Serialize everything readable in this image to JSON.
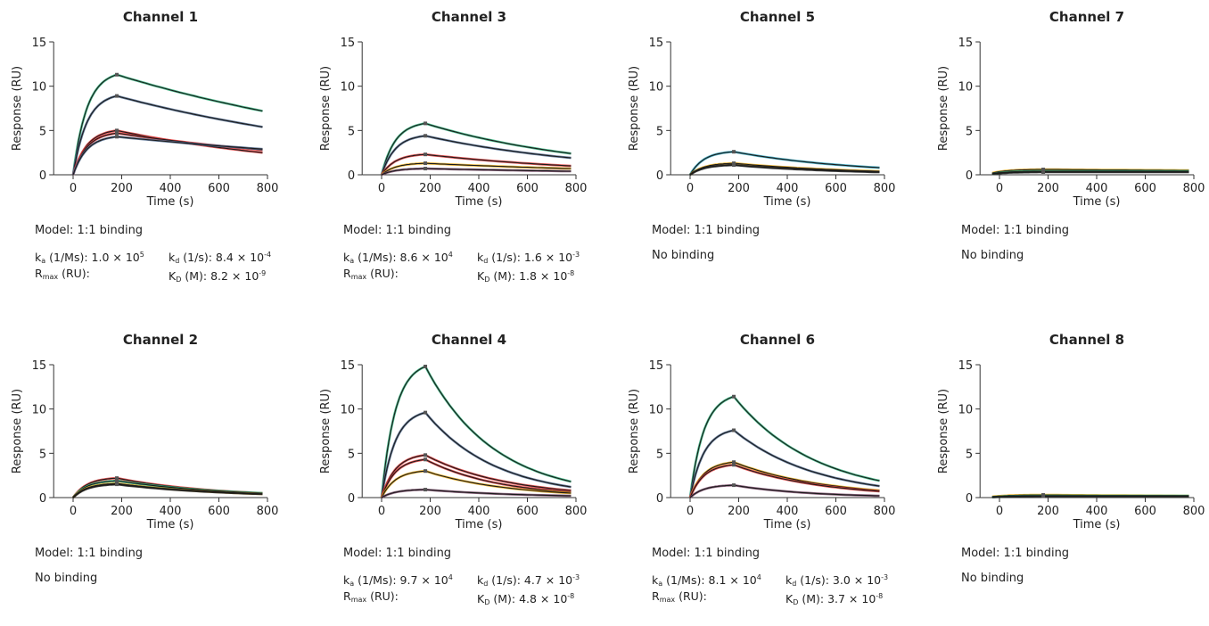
{
  "chart_data": [
    {
      "type": "line",
      "title": "Channel 1",
      "xlabel": "Time (s)",
      "ylabel": "Response (RU)",
      "xlim": [
        -80,
        800
      ],
      "ylim": [
        0,
        15
      ],
      "xticks": [
        "0",
        "200",
        "400",
        "600",
        "800"
      ],
      "yticks": [
        "0",
        "5",
        "10",
        "15"
      ],
      "series": [
        {
          "color": "#2db27a",
          "values": [
            [
              0,
              0
            ],
            [
              180,
              11.3
            ],
            [
              780,
              7.2
            ]
          ]
        },
        {
          "color": "#4f6a8e",
          "values": [
            [
              0,
              0
            ],
            [
              180,
              8.9
            ],
            [
              780,
              5.4
            ]
          ]
        },
        {
          "color": "#e03a3a",
          "values": [
            [
              0,
              0
            ],
            [
              180,
              5.0
            ],
            [
              780,
              2.5
            ]
          ]
        },
        {
          "color": "#e03a3a",
          "values": [
            [
              0,
              0
            ],
            [
              180,
              4.7
            ],
            [
              780,
              2.8
            ]
          ]
        },
        {
          "color": "#4f6a8e",
          "values": [
            [
              0,
              0
            ],
            [
              180,
              4.3
            ],
            [
              780,
              2.9
            ]
          ]
        }
      ],
      "model": "Model: 1:1 binding",
      "ka_label": "k",
      "ka_sub": "a",
      "ka_unit": " (1/Ms): ",
      "ka_value": "1.0 × 10",
      "ka_exp": "5",
      "kd_label": "k",
      "kd_sub": "d",
      "kd_unit": " (1/s): ",
      "kd_value": "8.4 × 10",
      "kd_exp": "-4",
      "rmax_label": "R",
      "rmax_sub": "max",
      "rmax_unit": " (RU):",
      "KD_label": "K",
      "KD_sub": "D",
      "KD_unit": " (M): ",
      "KD_value": "8.2 × 10",
      "KD_exp": "-9"
    },
    {
      "type": "line",
      "title": "Channel 3",
      "xlabel": "Time (s)",
      "ylabel": "Response (RU)",
      "xlim": [
        -80,
        800
      ],
      "ylim": [
        0,
        15
      ],
      "xticks": [
        "0",
        "200",
        "400",
        "600",
        "800"
      ],
      "yticks": [
        "0",
        "5",
        "10",
        "15"
      ],
      "series": [
        {
          "color": "#2db27a",
          "values": [
            [
              0,
              0
            ],
            [
              180,
              5.8
            ],
            [
              780,
              2.4
            ]
          ]
        },
        {
          "color": "#4f6a8e",
          "values": [
            [
              0,
              0
            ],
            [
              180,
              4.4
            ],
            [
              780,
              1.9
            ]
          ]
        },
        {
          "color": "#e03a3a",
          "values": [
            [
              0,
              0
            ],
            [
              180,
              2.3
            ],
            [
              780,
              1.0
            ]
          ]
        },
        {
          "color": "#e6a817",
          "values": [
            [
              0,
              0
            ],
            [
              180,
              1.3
            ],
            [
              780,
              0.7
            ]
          ]
        },
        {
          "color": "#7a4a6a",
          "values": [
            [
              0,
              0
            ],
            [
              180,
              0.7
            ],
            [
              780,
              0.4
            ]
          ]
        }
      ],
      "model": "Model: 1:1 binding",
      "ka_label": "k",
      "ka_sub": "a",
      "ka_unit": " (1/Ms): ",
      "ka_value": "8.6 × 10",
      "ka_exp": "4",
      "kd_label": "k",
      "kd_sub": "d",
      "kd_unit": " (1/s): ",
      "kd_value": "1.6 × 10",
      "kd_exp": "-3",
      "rmax_label": "R",
      "rmax_sub": "max",
      "rmax_unit": " (RU):",
      "KD_label": "K",
      "KD_sub": "D",
      "KD_unit": " (M): ",
      "KD_value": "1.8 × 10",
      "KD_exp": "-8"
    },
    {
      "type": "line",
      "title": "Channel 5",
      "xlabel": "Time (s)",
      "ylabel": "Response (RU)",
      "xlim": [
        -80,
        800
      ],
      "ylim": [
        0,
        15
      ],
      "xticks": [
        "0",
        "200",
        "400",
        "600",
        "800"
      ],
      "yticks": [
        "0",
        "5",
        "10",
        "15"
      ],
      "series": [
        {
          "color": "#2aa0b8",
          "values": [
            [
              0,
              0
            ],
            [
              180,
              2.6
            ],
            [
              780,
              0.8
            ]
          ]
        },
        {
          "color": "#e6a817",
          "values": [
            [
              0,
              0
            ],
            [
              180,
              1.3
            ],
            [
              780,
              0.4
            ]
          ]
        },
        {
          "color": "#222222",
          "values": [
            [
              0,
              0
            ],
            [
              180,
              1.1
            ],
            [
              780,
              0.3
            ]
          ]
        }
      ],
      "model": "Model: 1:1 binding",
      "nobinding": "No binding"
    },
    {
      "type": "line",
      "title": "Channel 7",
      "xlabel": "Time (s)",
      "ylabel": "Response (RU)",
      "xlim": [
        -80,
        800
      ],
      "ylim": [
        0,
        15
      ],
      "xticks": [
        "0",
        "200",
        "400",
        "600",
        "800"
      ],
      "yticks": [
        "0",
        "5",
        "10",
        "15"
      ],
      "series": [
        {
          "color": "#e6a817",
          "values": [
            [
              -30,
              0.2
            ],
            [
              180,
              0.6
            ],
            [
              780,
              0.5
            ]
          ]
        },
        {
          "color": "#2db27a",
          "values": [
            [
              -30,
              0.1
            ],
            [
              180,
              0.4
            ],
            [
              780,
              0.4
            ]
          ]
        },
        {
          "color": "#222222",
          "values": [
            [
              -30,
              0.1
            ],
            [
              180,
              0.3
            ],
            [
              780,
              0.3
            ]
          ]
        }
      ],
      "model": "Model: 1:1 binding",
      "nobinding": "No binding"
    },
    {
      "type": "line",
      "title": "Channel 2",
      "xlabel": "Time (s)",
      "ylabel": "Response (RU)",
      "xlim": [
        -80,
        800
      ],
      "ylim": [
        0,
        15
      ],
      "xticks": [
        "0",
        "200",
        "400",
        "600",
        "800"
      ],
      "yticks": [
        "0",
        "5",
        "10",
        "15"
      ],
      "series": [
        {
          "color": "#e03a3a",
          "values": [
            [
              0,
              0
            ],
            [
              180,
              2.2
            ],
            [
              780,
              0.5
            ]
          ]
        },
        {
          "color": "#2db27a",
          "values": [
            [
              0,
              0
            ],
            [
              180,
              1.9
            ],
            [
              780,
              0.5
            ]
          ]
        },
        {
          "color": "#e6a817",
          "values": [
            [
              0,
              0
            ],
            [
              180,
              1.6
            ],
            [
              780,
              0.4
            ]
          ]
        },
        {
          "color": "#222222",
          "values": [
            [
              0,
              0
            ],
            [
              180,
              1.5
            ],
            [
              780,
              0.4
            ]
          ]
        }
      ],
      "model": "Model: 1:1 binding",
      "nobinding": "No binding"
    },
    {
      "type": "line",
      "title": "Channel 4",
      "xlabel": "Time (s)",
      "ylabel": "Response (RU)",
      "xlim": [
        -80,
        800
      ],
      "ylim": [
        0,
        15
      ],
      "xticks": [
        "0",
        "200",
        "400",
        "600",
        "800"
      ],
      "yticks": [
        "0",
        "5",
        "10",
        "15"
      ],
      "series": [
        {
          "color": "#2db27a",
          "values": [
            [
              0,
              0
            ],
            [
              180,
              14.8
            ],
            [
              780,
              1.8
            ]
          ]
        },
        {
          "color": "#4f6a8e",
          "values": [
            [
              0,
              0
            ],
            [
              180,
              9.6
            ],
            [
              780,
              1.2
            ]
          ]
        },
        {
          "color": "#e03a3a",
          "values": [
            [
              0,
              0
            ],
            [
              180,
              4.8
            ],
            [
              780,
              0.8
            ]
          ]
        },
        {
          "color": "#e03a3a",
          "values": [
            [
              0,
              0
            ],
            [
              180,
              4.3
            ],
            [
              780,
              0.6
            ]
          ]
        },
        {
          "color": "#e6a817",
          "values": [
            [
              0,
              0
            ],
            [
              180,
              3.0
            ],
            [
              780,
              0.5
            ]
          ]
        },
        {
          "color": "#7a4a6a",
          "values": [
            [
              0,
              0
            ],
            [
              180,
              0.9
            ],
            [
              780,
              0.2
            ]
          ]
        }
      ],
      "model": "Model: 1:1 binding",
      "ka_label": "k",
      "ka_sub": "a",
      "ka_unit": " (1/Ms): ",
      "ka_value": "9.7 × 10",
      "ka_exp": "4",
      "kd_label": "k",
      "kd_sub": "d",
      "kd_unit": " (1/s): ",
      "kd_value": "4.7 × 10",
      "kd_exp": "-3",
      "rmax_label": "R",
      "rmax_sub": "max",
      "rmax_unit": " (RU):",
      "KD_label": "K",
      "KD_sub": "D",
      "KD_unit": " (M): ",
      "KD_value": "4.8 × 10",
      "KD_exp": "-8"
    },
    {
      "type": "line",
      "title": "Channel 6",
      "xlabel": "Time (s)",
      "ylabel": "Response (RU)",
      "xlim": [
        -80,
        800
      ],
      "ylim": [
        0,
        15
      ],
      "xticks": [
        "0",
        "200",
        "400",
        "600",
        "800"
      ],
      "yticks": [
        "0",
        "5",
        "10",
        "15"
      ],
      "series": [
        {
          "color": "#2db27a",
          "values": [
            [
              0,
              0
            ],
            [
              180,
              11.4
            ],
            [
              780,
              1.9
            ]
          ]
        },
        {
          "color": "#4f6a8e",
          "values": [
            [
              0,
              0
            ],
            [
              180,
              7.6
            ],
            [
              780,
              1.3
            ]
          ]
        },
        {
          "color": "#e6a817",
          "values": [
            [
              0,
              0
            ],
            [
              180,
              4.0
            ],
            [
              780,
              0.8
            ]
          ]
        },
        {
          "color": "#e03a3a",
          "values": [
            [
              0,
              0
            ],
            [
              180,
              3.7
            ],
            [
              780,
              0.7
            ]
          ]
        },
        {
          "color": "#7a4a6a",
          "values": [
            [
              0,
              0
            ],
            [
              180,
              1.4
            ],
            [
              780,
              0.2
            ]
          ]
        }
      ],
      "model": "Model: 1:1 binding",
      "ka_label": "k",
      "ka_sub": "a",
      "ka_unit": " (1/Ms): ",
      "ka_value": "8.1 × 10",
      "ka_exp": "4",
      "kd_label": "k",
      "kd_sub": "d",
      "kd_unit": " (1/s): ",
      "kd_value": "3.0 × 10",
      "kd_exp": "-3",
      "rmax_label": "R",
      "rmax_sub": "max",
      "rmax_unit": " (RU):",
      "KD_label": "K",
      "KD_sub": "D",
      "KD_unit": " (M): ",
      "KD_value": "3.7 × 10",
      "KD_exp": "-8"
    },
    {
      "type": "line",
      "title": "Channel 8",
      "xlabel": "Time (s)",
      "ylabel": "Response (RU)",
      "xlim": [
        -80,
        800
      ],
      "ylim": [
        0,
        15
      ],
      "xticks": [
        "0",
        "200",
        "400",
        "600",
        "800"
      ],
      "yticks": [
        "0",
        "5",
        "10",
        "15"
      ],
      "series": [
        {
          "color": "#e6a817",
          "values": [
            [
              -30,
              0.1
            ],
            [
              180,
              0.3
            ],
            [
              780,
              0.2
            ]
          ]
        },
        {
          "color": "#2db27a",
          "values": [
            [
              -30,
              0.05
            ],
            [
              180,
              0.2
            ],
            [
              780,
              0.2
            ]
          ]
        },
        {
          "color": "#222222",
          "values": [
            [
              -30,
              0.05
            ],
            [
              180,
              0.15
            ],
            [
              780,
              0.15
            ]
          ]
        }
      ],
      "model": "Model: 1:1 binding",
      "nobinding": "No binding"
    }
  ]
}
